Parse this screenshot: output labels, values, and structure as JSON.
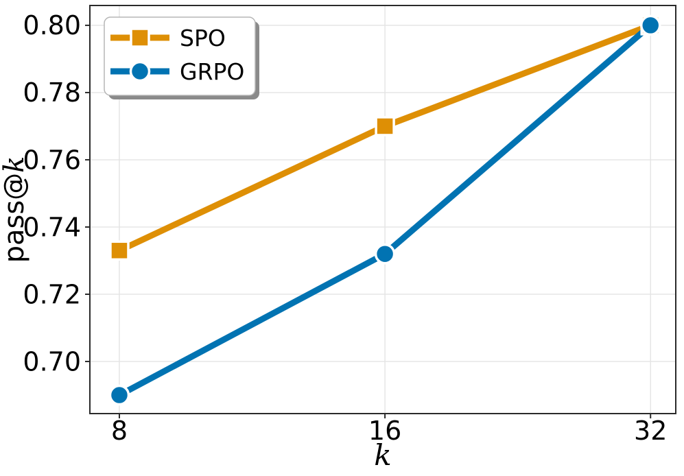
{
  "figure": {
    "background": "#ffffff"
  },
  "chart_data": {
    "type": "line",
    "title": "",
    "xlabel": "k",
    "ylabel_prefix": "pass@",
    "ylabel_math": "k",
    "xscale": "log2",
    "x": [
      8,
      16,
      32
    ],
    "xtick_labels": [
      "8",
      "16",
      "32"
    ],
    "ytick_values": [
      0.7,
      0.72,
      0.74,
      0.76,
      0.78,
      0.8
    ],
    "ytick_labels": [
      "0.70",
      "0.72",
      "0.74",
      "0.76",
      "0.78",
      "0.80"
    ],
    "xlim_log2": [
      2.889,
      5.095
    ],
    "ylim": [
      0.6845,
      0.8059
    ],
    "grid": true,
    "grid_color": "#e5e5e5",
    "axis_color": "#2a2a2a",
    "text_color": "#000000",
    "legend": {
      "position": "upper-left",
      "entries": [
        "SPO",
        "GRPO"
      ],
      "border_color": "#b5b5b5",
      "shadow_color": "#8a8a8a",
      "background": "#ffffff"
    },
    "series": [
      {
        "name": "SPO",
        "color": "#de8f05",
        "marker": "square",
        "values": [
          0.733,
          0.77,
          0.8
        ]
      },
      {
        "name": "GRPO",
        "color": "#0173b2",
        "marker": "circle",
        "values": [
          0.69,
          0.732,
          0.8
        ]
      }
    ]
  }
}
